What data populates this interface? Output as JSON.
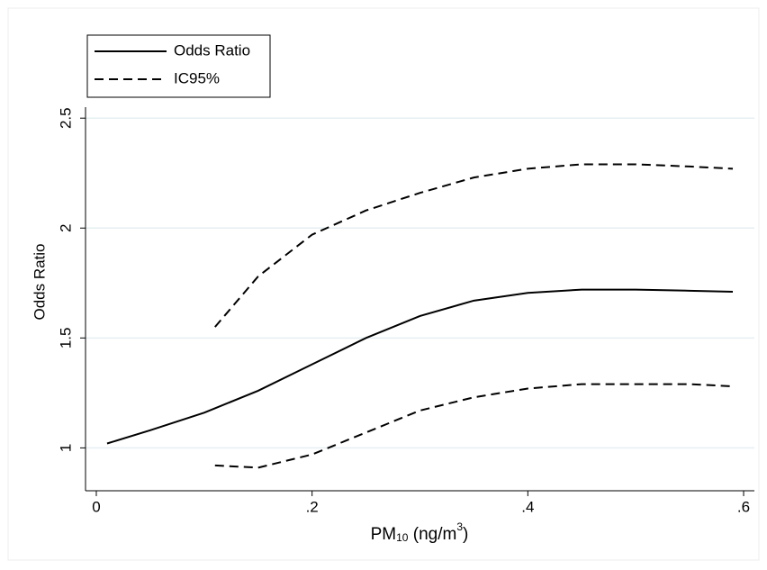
{
  "chart_data": {
    "type": "line",
    "y_label": "Odds Ratio",
    "x_label": {
      "main": "PM",
      "sub": "10",
      "rest": " (ng/m",
      "sup": "3",
      "end": ")"
    },
    "x": [
      0.01,
      0.05,
      0.1,
      0.11,
      0.15,
      0.2,
      0.25,
      0.3,
      0.35,
      0.4,
      0.45,
      0.5,
      0.55,
      0.59
    ],
    "series": [
      {
        "name": "Odds Ratio",
        "color": "#000000",
        "dashed": false,
        "values": [
          1.02,
          1.08,
          1.16,
          1.18,
          1.26,
          1.38,
          1.5,
          1.6,
          1.67,
          1.705,
          1.72,
          1.72,
          1.715,
          1.71
        ]
      },
      {
        "name": "IC95%",
        "color": "#000000",
        "dashed": true,
        "upper": [
          null,
          null,
          null,
          1.55,
          1.78,
          1.97,
          2.08,
          2.16,
          2.23,
          2.27,
          2.29,
          2.29,
          2.28,
          2.27
        ],
        "lower": [
          null,
          null,
          null,
          0.92,
          0.91,
          0.97,
          1.07,
          1.17,
          1.23,
          1.27,
          1.29,
          1.29,
          1.29,
          1.28
        ]
      }
    ],
    "xlim": [
      -0.01,
      0.61
    ],
    "ylim": [
      0.85,
      2.55
    ],
    "xticks": [
      0,
      {
        "value": 0.2,
        "label": ".2"
      },
      {
        "value": 0.4,
        "label": ".4"
      },
      {
        "value": 0.6,
        "label": ".6"
      }
    ],
    "yticks": [
      1,
      1.5,
      2,
      2.5
    ],
    "grid": true,
    "grid_color": "#e6eff2",
    "legend": "top-left"
  }
}
